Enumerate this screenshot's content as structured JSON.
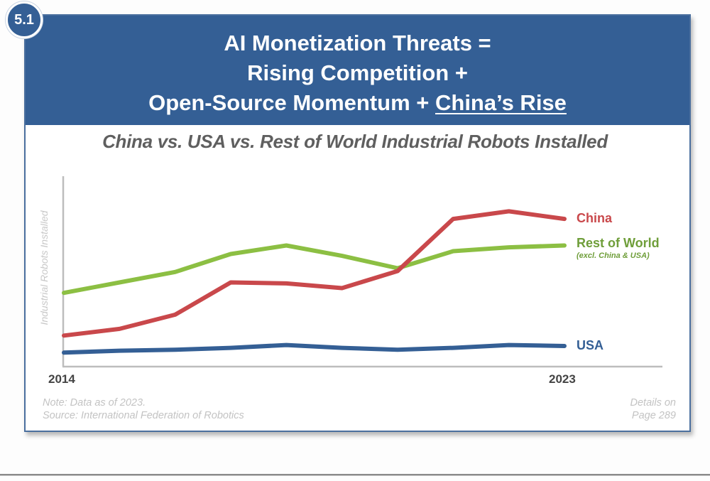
{
  "badge": {
    "label": "5.1"
  },
  "header": {
    "lines": [
      "AI Monetization Threats =",
      "Rising Competition +",
      "Open-Source Momentum + "
    ],
    "underlined": "China’s Rise"
  },
  "footer": {
    "note": "Note: Data as of 2023.",
    "source": "Source: International Federation of Robotics",
    "details_line1": "Details on",
    "details_line2": "Page 289"
  },
  "colors": {
    "header_bg": "#345f95",
    "china": "#c9484b",
    "rest_of_world": "#8cbf43",
    "usa": "#345f95"
  },
  "chart_data": {
    "type": "line",
    "title": "China vs. USA vs. Rest of World Industrial Robots Installed",
    "xlabel": "",
    "ylabel": "Industrial Robots Installed",
    "x": [
      2014,
      2015,
      2016,
      2017,
      2018,
      2019,
      2020,
      2021,
      2022,
      2023
    ],
    "x_tick_labels": [
      "2014",
      "2023"
    ],
    "y_units": "relative index (no numeric y-axis shown; 0 = axis baseline, 100 = top of axis)",
    "ylim": [
      0,
      100
    ],
    "grid": false,
    "legend": "right, inline at line ends",
    "series": [
      {
        "name": "China",
        "color": "#c9484b",
        "values": [
          16,
          19.5,
          27,
          44,
          43.5,
          41,
          50,
          77.5,
          81.5,
          77.5
        ]
      },
      {
        "name": "Rest of World",
        "subtitle": "(excl. China & USA)",
        "color": "#8cbf43",
        "values": [
          38.5,
          44,
          49.5,
          59,
          63.5,
          58,
          51.5,
          60.5,
          62.5,
          63.5
        ]
      },
      {
        "name": "USA",
        "color": "#345f95",
        "values": [
          7,
          8,
          8.5,
          9.5,
          11,
          9.5,
          8.5,
          9.5,
          11,
          10.5
        ]
      }
    ],
    "annotations": [
      "Note: Data as of 2023.",
      "Source: International Federation of Robotics",
      "Details on Page 289"
    ]
  }
}
